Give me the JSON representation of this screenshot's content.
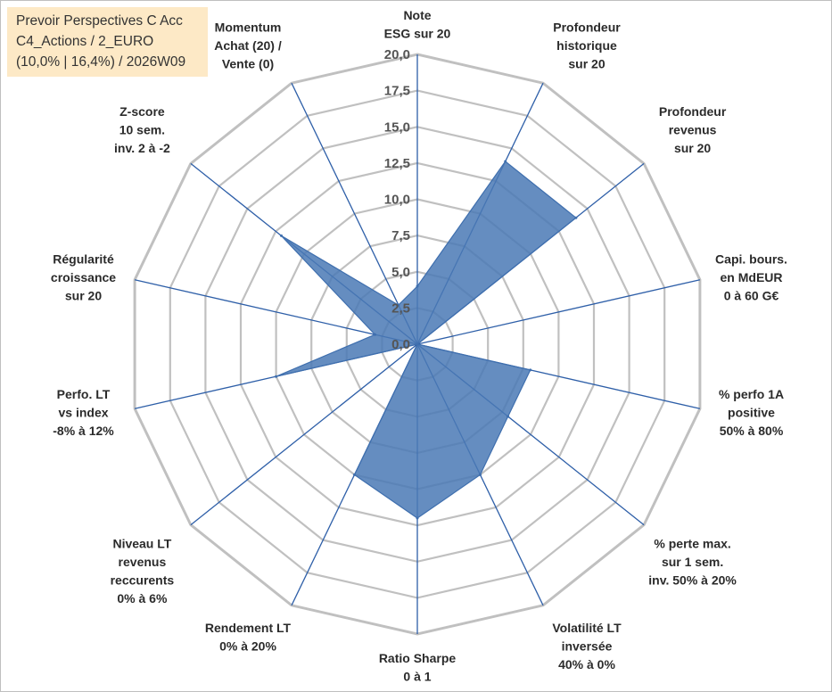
{
  "title_box": {
    "line1": "Prevoir Perspectives C Acc",
    "line2": "C4_Actions / 2_EURO",
    "line3": "(10,0% | 16,4%) / 2026W09"
  },
  "colors": {
    "grid": "#c0c0c0",
    "spoke": "#2e5fa8",
    "fill": "#4a79b5",
    "fill_edge": "#3f6fae"
  },
  "chart_data": {
    "type": "radar",
    "rmin": 0,
    "rmax": 20,
    "ticks": [
      0,
      2.5,
      5,
      7.5,
      10,
      12.5,
      15,
      17.5,
      20
    ],
    "tick_labels": [
      "0,0",
      "2,5",
      "5,0",
      "7,5",
      "10,0",
      "12,5",
      "15,0",
      "17,5",
      "20,0"
    ],
    "axes": [
      {
        "label": [
          "Note",
          "ESG sur 20"
        ],
        "value": 4
      },
      {
        "label": [
          "Profondeur",
          "historique",
          "sur 20"
        ],
        "value": 14
      },
      {
        "label": [
          "Profondeur",
          "revenus",
          "sur 20"
        ],
        "value": 14
      },
      {
        "label": [
          "Capi. bours.",
          "en MdEUR",
          "0 à 60 G€"
        ],
        "value": 0
      },
      {
        "label": [
          "% perfo 1A",
          "positive",
          "50% à 80%"
        ],
        "value": 8
      },
      {
        "label": [
          "% perte max.",
          "sur 1 sem.",
          "inv. 50% à 20%"
        ],
        "value": 8
      },
      {
        "label": [
          "Volatilité LT",
          "inversée",
          "40% à 0%"
        ],
        "value": 10
      },
      {
        "label": [
          "Ratio Sharpe",
          "0 à 1"
        ],
        "value": 12
      },
      {
        "label": [
          "Rendement LT",
          "0% à 20%"
        ],
        "value": 10
      },
      {
        "label": [
          "Niveau LT",
          "revenus",
          "reccurents",
          "0% à 6%"
        ],
        "value": 0
      },
      {
        "label": [
          "Perfo. LT",
          "vs index",
          "-8% à 12%"
        ],
        "value": 10
      },
      {
        "label": [
          "Régularité",
          "croissance",
          "sur 20"
        ],
        "value": 3
      },
      {
        "label": [
          "Z-score",
          "10 sem.",
          "inv. 2 à -2"
        ],
        "value": 12
      },
      {
        "label": [
          "Momentum",
          "Achat (20) /",
          "Vente (0)"
        ],
        "value": 3
      }
    ]
  }
}
